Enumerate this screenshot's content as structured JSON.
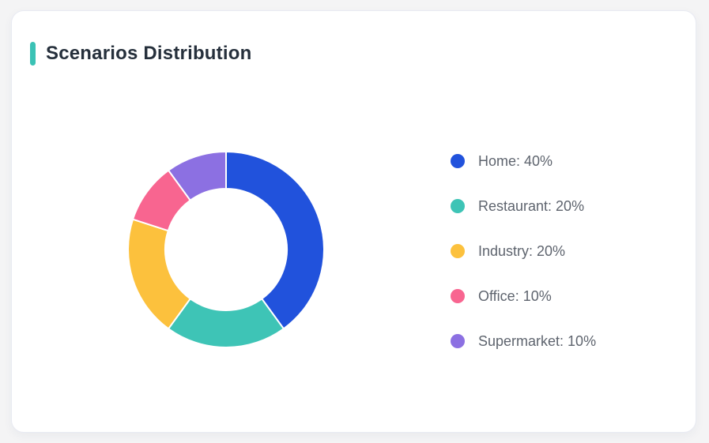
{
  "card": {
    "title": "Scenarios Distribution"
  },
  "chart_data": {
    "type": "pie",
    "subtype": "donut",
    "title": "Scenarios Distribution",
    "series": [
      {
        "label": "Home",
        "value": 40,
        "color": "#2152DC"
      },
      {
        "label": "Restaurant",
        "value": 20,
        "color": "#3EC4B6"
      },
      {
        "label": "Industry",
        "value": 20,
        "color": "#FCC13D"
      },
      {
        "label": "Office",
        "value": 10,
        "color": "#F86590"
      },
      {
        "label": "Supermarket",
        "value": 10,
        "color": "#8C70E2"
      }
    ],
    "start_angle_deg": 0,
    "direction": "clockwise",
    "inner_radius_ratio": 0.62,
    "slice_gap_color": "#FFFFFF",
    "legend_position": "right",
    "legend_format": "{label}: {value}%",
    "legend_entries": [
      "Home: 40%",
      "Restaurant: 20%",
      "Industry: 20%",
      "Office: 10%",
      "Supermarket: 10%"
    ]
  },
  "theme": {
    "page_background": "#F4F4F5",
    "card_background": "#FFFFFF",
    "card_border_color": "#E8EAF2",
    "accent_bar_color": "#3BC2B5",
    "title_color": "#26303C",
    "legend_text_color": "#5E646E"
  }
}
